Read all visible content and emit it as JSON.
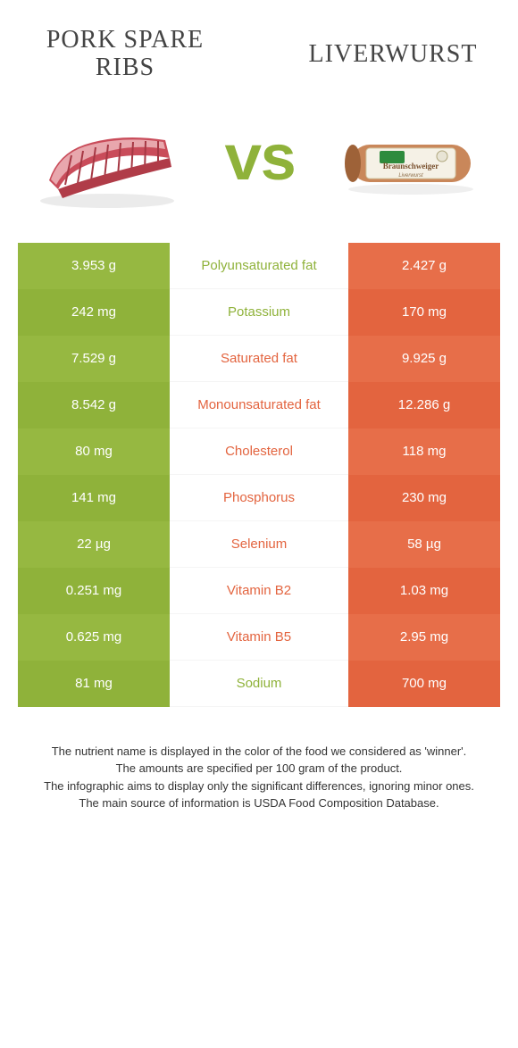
{
  "colors": {
    "left": "#96b841",
    "leftAlt": "#8fb23a",
    "right": "#e76e49",
    "rightAlt": "#e3643f",
    "leftText": "#8fb23a",
    "rightText": "#e3643f"
  },
  "header": {
    "leftTitle": "Pork spare ribs",
    "rightTitle": "Liverwurst",
    "vs": "vs"
  },
  "rows": [
    {
      "left": "3.953 g",
      "mid": "Polyunsaturated fat",
      "right": "2.427 g",
      "winner": "left"
    },
    {
      "left": "242 mg",
      "mid": "Potassium",
      "right": "170 mg",
      "winner": "left"
    },
    {
      "left": "7.529 g",
      "mid": "Saturated fat",
      "right": "9.925 g",
      "winner": "right"
    },
    {
      "left": "8.542 g",
      "mid": "Monounsaturated fat",
      "right": "12.286 g",
      "winner": "right"
    },
    {
      "left": "80 mg",
      "mid": "Cholesterol",
      "right": "118 mg",
      "winner": "right"
    },
    {
      "left": "141 mg",
      "mid": "Phosphorus",
      "right": "230 mg",
      "winner": "right"
    },
    {
      "left": "22 µg",
      "mid": "Selenium",
      "right": "58 µg",
      "winner": "right"
    },
    {
      "left": "0.251 mg",
      "mid": "Vitamin B2",
      "right": "1.03 mg",
      "winner": "right"
    },
    {
      "left": "0.625 mg",
      "mid": "Vitamin B5",
      "right": "2.95 mg",
      "winner": "right"
    },
    {
      "left": "81 mg",
      "mid": "Sodium",
      "right": "700 mg",
      "winner": "left"
    }
  ],
  "footer": {
    "line1": "The nutrient name is displayed in the color of the food we considered as 'winner'.",
    "line2": "The amounts are specified per 100 gram of the product.",
    "line3": "The infographic aims to display only the significant differences, ignoring minor ones.",
    "line4": "The main source of information is USDA Food Composition Database."
  }
}
